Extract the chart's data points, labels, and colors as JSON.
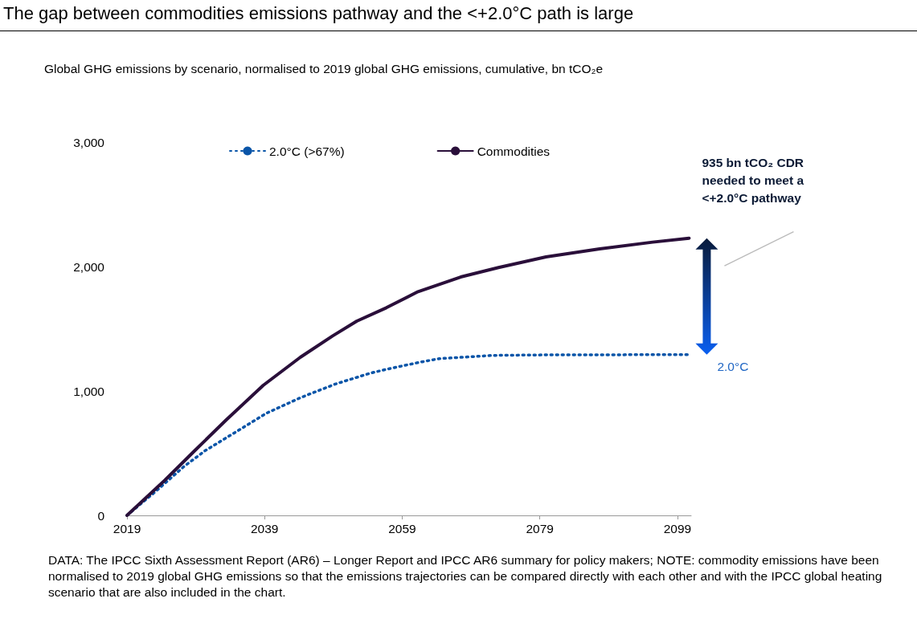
{
  "chart_data": {
    "type": "line",
    "title": "The gap between commodities emissions pathway and the <+2.0°C path is large",
    "subtitle": "Global GHG emissions by scenario, normalised to 2019 global GHG emissions, cumulative, bn tCO₂e",
    "series": [
      {
        "name": "2.0°C (>67%)",
        "color": "#0a55a8",
        "line_style": "dotted",
        "x": [
          2019,
          2023,
          2027.2,
          2030.3,
          2035.4,
          2039.2,
          2044.3,
          2049.3,
          2054.3,
          2056.7,
          2061.3,
          2064.4,
          2072.2,
          2080,
          2090,
          2100.7
        ],
        "values": [
          0,
          185,
          389,
          518,
          690,
          819,
          948,
          1056,
          1142,
          1174,
          1228,
          1260,
          1286,
          1290,
          1291,
          1292
        ]
      },
      {
        "name": "Commodities",
        "color": "#2a0f3a",
        "line_style": "solid",
        "x": [
          2019,
          2024.5,
          2028.8,
          2033.4,
          2038.8,
          2044.2,
          2048.9,
          2052.4,
          2056.7,
          2061.3,
          2067.5,
          2073,
          2079.9,
          2087.7,
          2095.4,
          2100.7
        ],
        "values": [
          0,
          282,
          518,
          766,
          1045,
          1271,
          1443,
          1561,
          1669,
          1798,
          1916,
          1992,
          2077,
          2142,
          2196,
          2228
        ]
      }
    ],
    "xlim": [
      2019,
      2101
    ],
    "xticks": [
      2019,
      2039,
      2059,
      2079,
      2099
    ],
    "ylim": [
      0,
      3000
    ],
    "yticks": [
      {
        "value": 0,
        "label": "0"
      },
      {
        "value": 1000,
        "label": "1,000"
      },
      {
        "value": 2000,
        "label": "2,000"
      },
      {
        "value": 3000,
        "label": "3,000"
      }
    ],
    "grid": false,
    "legend": "top",
    "marker": "none",
    "annotations": [
      "935 bn tCO₂ CDR needed to meet a <+2.0°C pathway",
      {
        "text": "2.0°C",
        "x": 2100.7,
        "y": 1292
      },
      "DATA: The IPCC Sixth Assessment Report (AR6) – Longer Report and IPCC AR6 summary for policy makers; NOTE: commodity emissions have been normalised to 2019 global GHG emissions so that the emissions trajectories can be compared directly with each other and with the IPCC global heating scenario that are also included in the chart."
    ]
  }
}
